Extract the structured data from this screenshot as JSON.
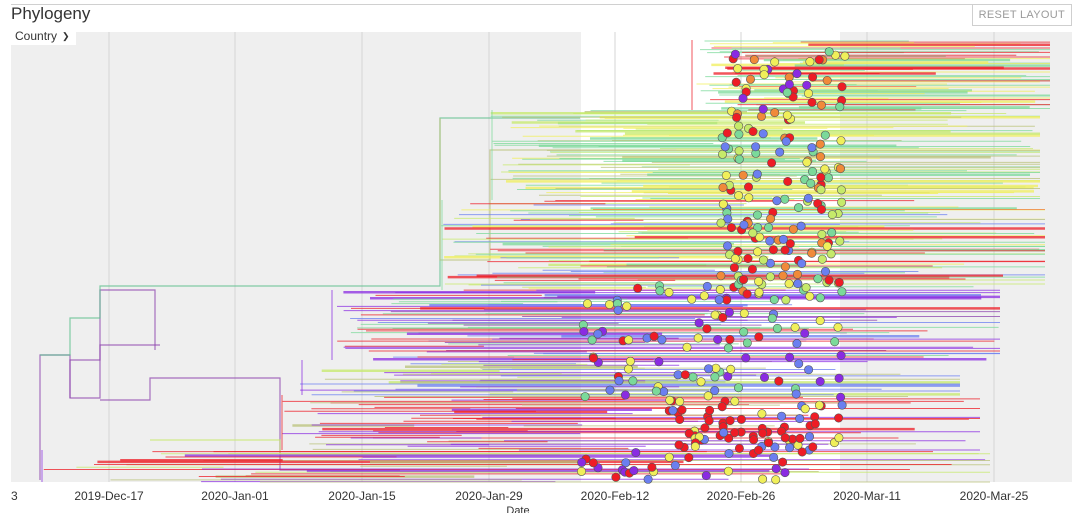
{
  "header": {
    "title": "Phylogeny",
    "reset_label": "RESET LAYOUT"
  },
  "controls": {
    "color_by_label": "Country"
  },
  "chart_data": {
    "type": "scatter",
    "title": "Phylogeny",
    "xlabel": "Date",
    "ylabel": "",
    "x_axis_kind": "date",
    "x_ticks": [
      "2019-Dec-17",
      "2020-Jan-01",
      "2020-Jan-15",
      "2020-Jan-29",
      "2020-Feb-12",
      "2020-Feb-26",
      "2020-Mar-11",
      "2020-Mar-25"
    ],
    "x_range": [
      "2019-Dec-06",
      "2020-Apr-01"
    ],
    "left_edge_label": "3",
    "grid": true,
    "colors": {
      "purple": "#8a2be2",
      "violet": "#8e44ad",
      "blue": "#6b7ff0",
      "green": "#7bd99a",
      "teal": "#5bbf8c",
      "yellow": "#f0ef5a",
      "lime": "#c6ea6a",
      "orange": "#f08a3a",
      "red": "#ee1c25",
      "olive": "#b9c27a",
      "background_band": "#efefef"
    }
  }
}
